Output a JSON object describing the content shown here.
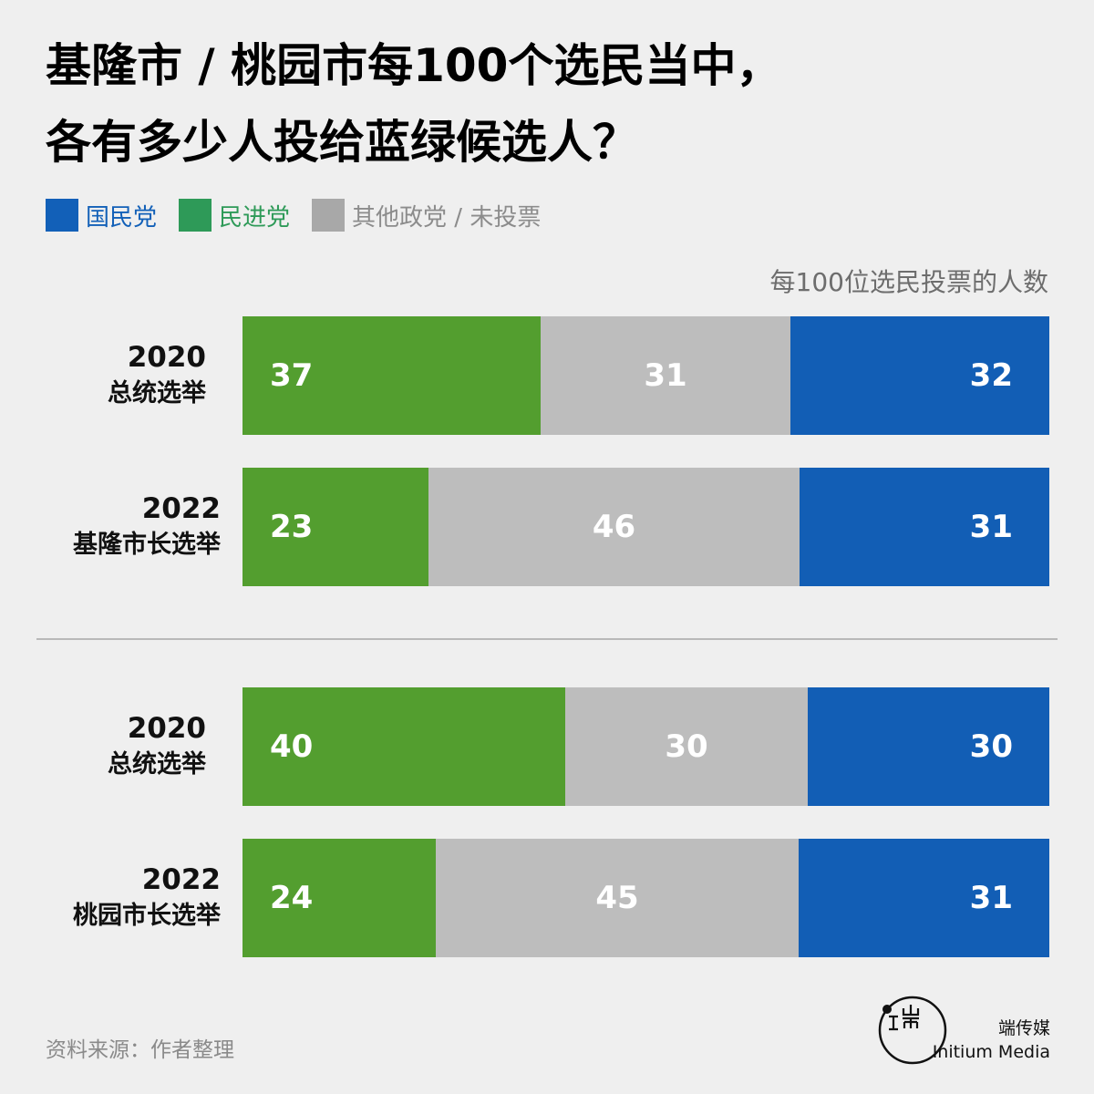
{
  "title": {
    "line1": "基隆市 / 桃园市每100个选民当中，",
    "line2": "各有多少人投给蓝绿候选人？"
  },
  "legend": [
    {
      "label": "国民党",
      "color": "#1260b8",
      "text_color": "#1260b8"
    },
    {
      "label": "民进党",
      "color": "#2e9a58",
      "text_color": "#2e9a58"
    },
    {
      "label": "其他政党 / 未投票",
      "color": "#a8a8a8",
      "text_color": "#8c8c8c"
    }
  ],
  "unit_label": "每100位选民投票的人数",
  "colors": {
    "dpp": "#539e2f",
    "other": "#bdbdbd",
    "kmt": "#125eb5"
  },
  "chart_data": {
    "type": "bar",
    "stacked": true,
    "orientation": "horizontal",
    "xlim": [
      0,
      100
    ],
    "categories": [
      {
        "year": "2020",
        "event": "总统选举"
      },
      {
        "year": "2022",
        "event": "基隆市长选举"
      },
      {
        "year": "2020",
        "event": "总统选举"
      },
      {
        "year": "2022",
        "event": "桃园市长选举"
      }
    ],
    "series": [
      {
        "name": "民进党",
        "values": [
          37,
          23,
          40,
          24
        ]
      },
      {
        "name": "其他政党 / 未投票",
        "values": [
          31,
          46,
          30,
          45
        ]
      },
      {
        "name": "国民党",
        "values": [
          32,
          31,
          30,
          31
        ]
      }
    ]
  },
  "source": "资料来源：作者整理",
  "brand": {
    "name_cn": "端传媒",
    "name_en": "Initium Media"
  }
}
